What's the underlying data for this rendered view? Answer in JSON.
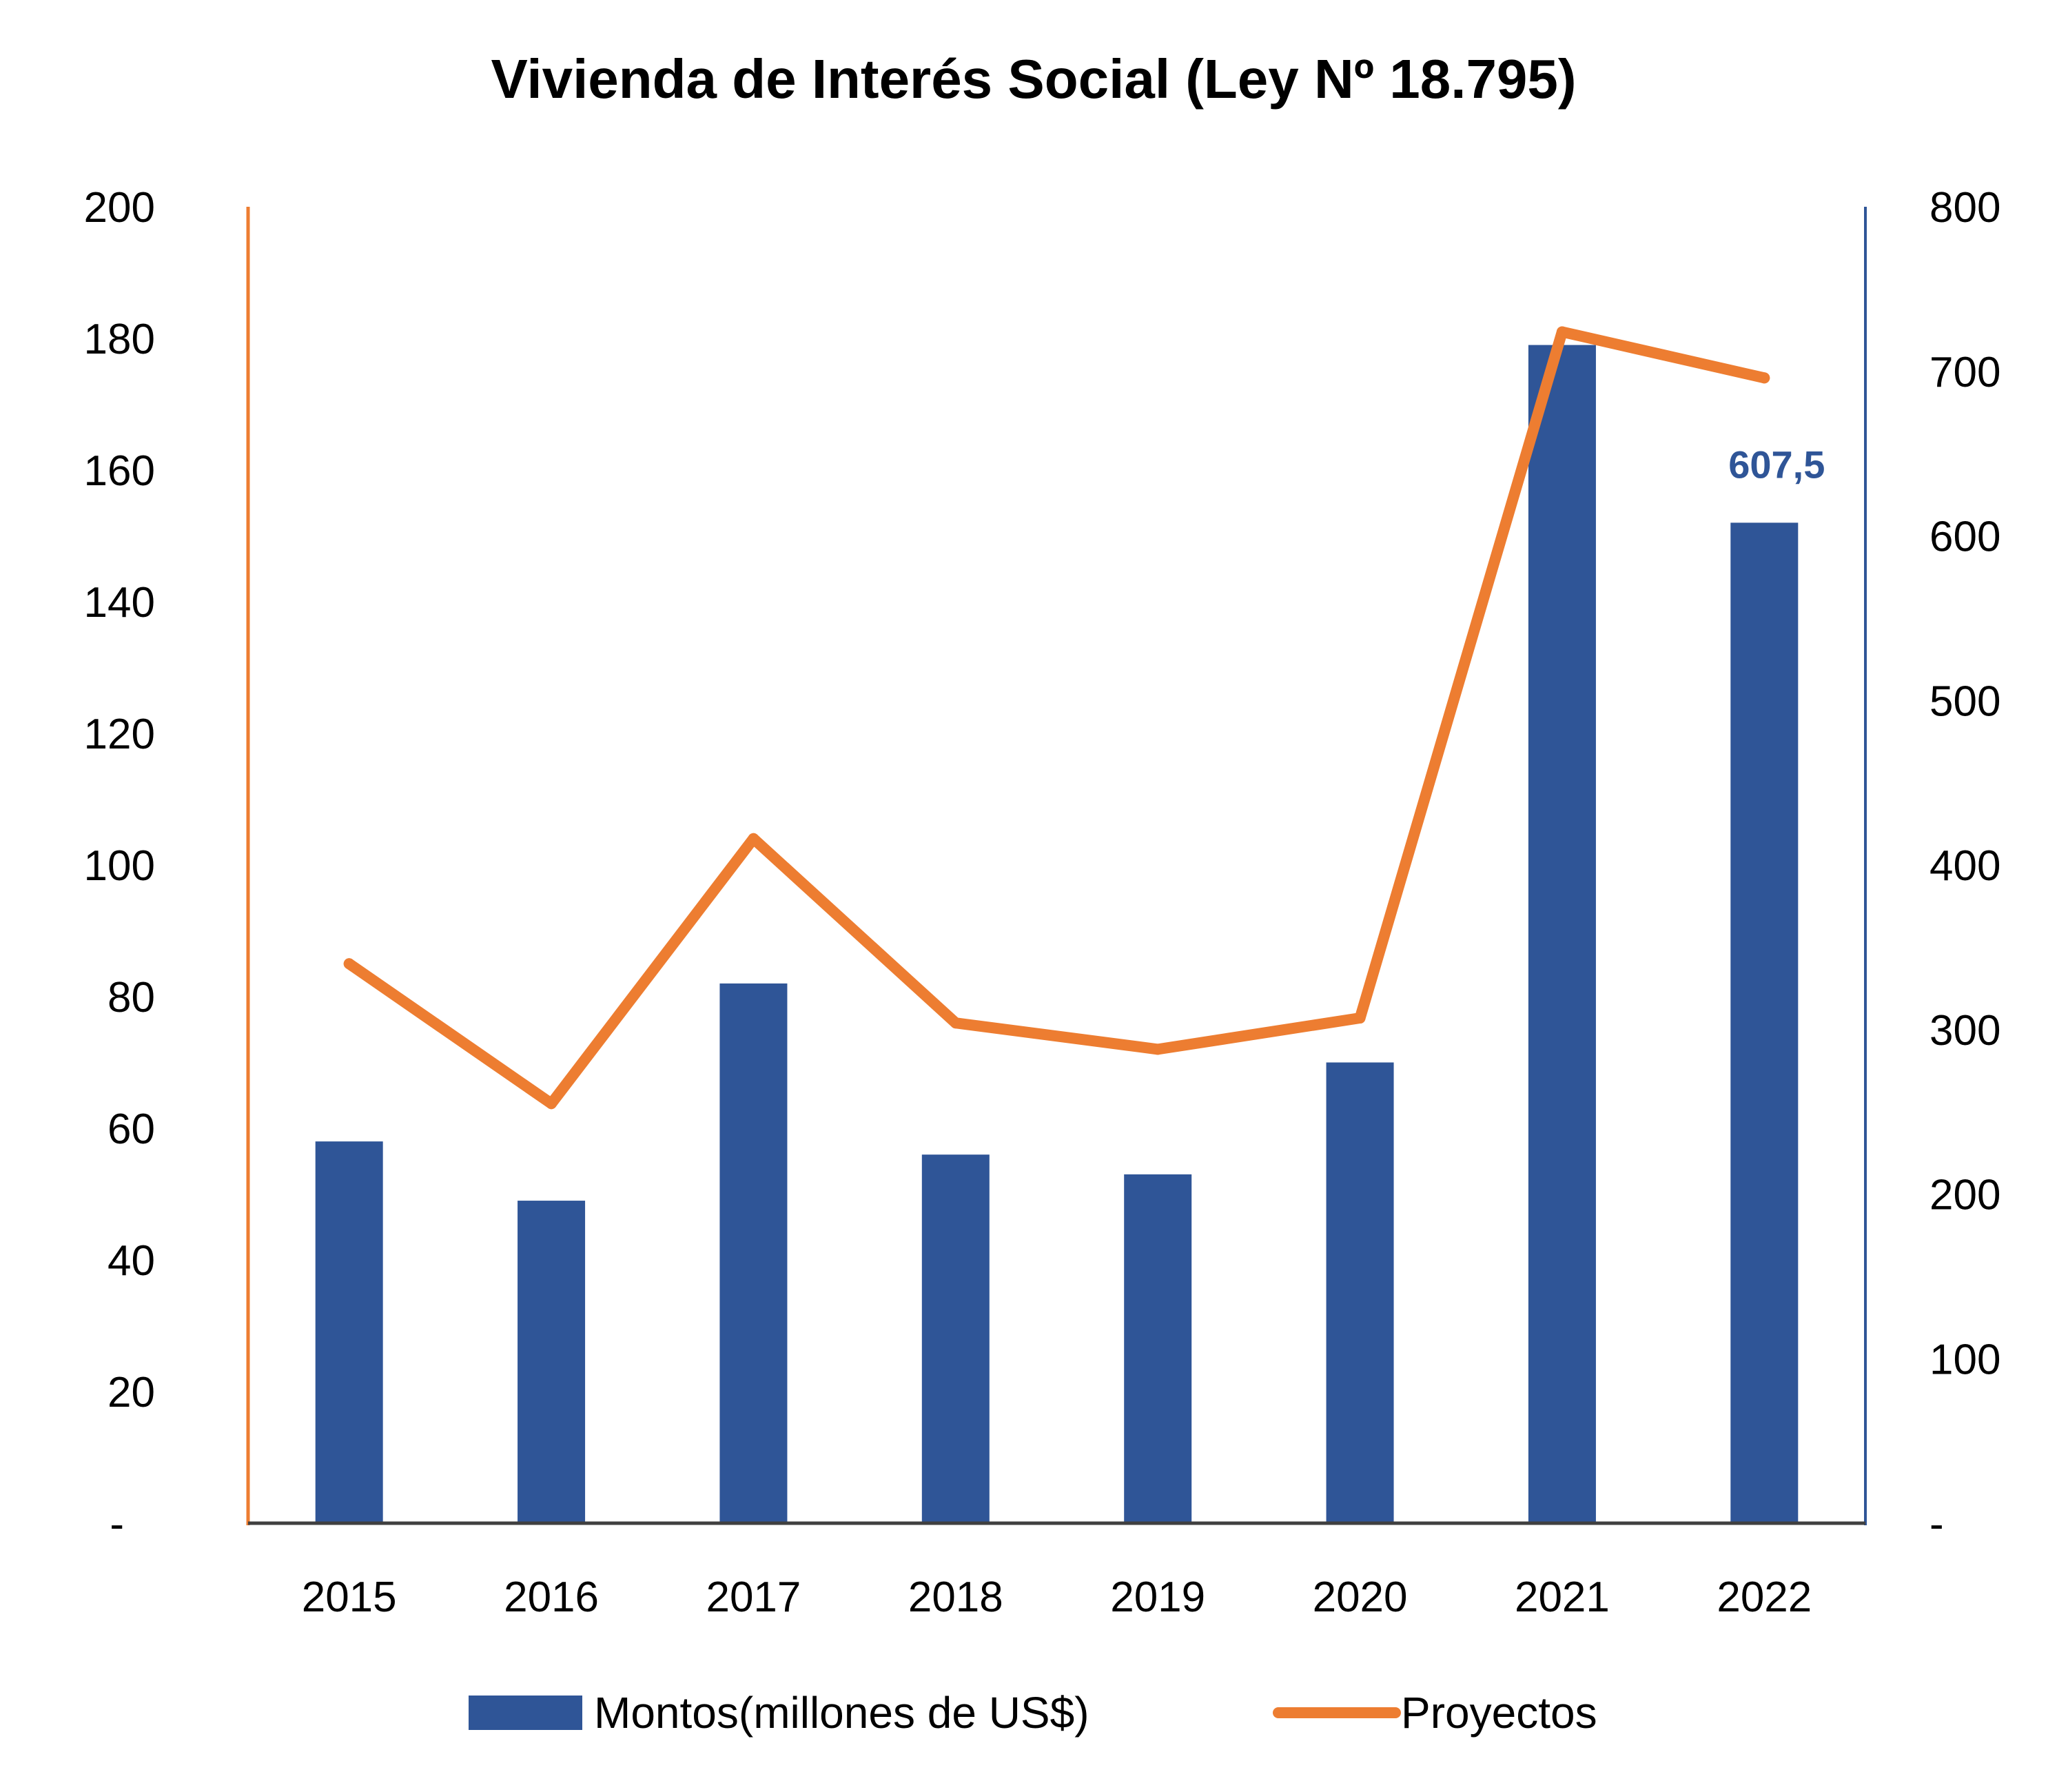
{
  "chart_data": {
    "type": "bar",
    "title": "Vivienda de Interés Social (Ley Nº 18.795)",
    "categories": [
      "2015",
      "2016",
      "2017",
      "2018",
      "2019",
      "2020",
      "2021",
      "2022"
    ],
    "series": [
      {
        "name": "Montos(millones de US$)",
        "type": "bar",
        "axis": "left",
        "color": "#2F5597",
        "values": [
          58,
          49,
          82,
          56,
          53,
          70,
          179,
          152
        ]
      },
      {
        "name": "Proyectos",
        "type": "line",
        "axis": "right",
        "color": "#ED7D31",
        "values": [
          340,
          255,
          416,
          304,
          288,
          307,
          724,
          696
        ]
      }
    ],
    "y_left": {
      "ylim": [
        0,
        200
      ],
      "ticks": [
        "-",
        "20",
        "40",
        "60",
        "80",
        "100",
        "120",
        "140",
        "160",
        "180",
        "200"
      ]
    },
    "y_right": {
      "ylim": [
        0,
        800
      ],
      "ticks": [
        "-",
        "100",
        "200",
        "300",
        "400",
        "500",
        "600",
        "700",
        "800"
      ]
    },
    "annotations": [
      {
        "text": "607,5",
        "category": "2022",
        "color": "#2F5597"
      }
    ],
    "legend": "bottom",
    "grid": false
  }
}
